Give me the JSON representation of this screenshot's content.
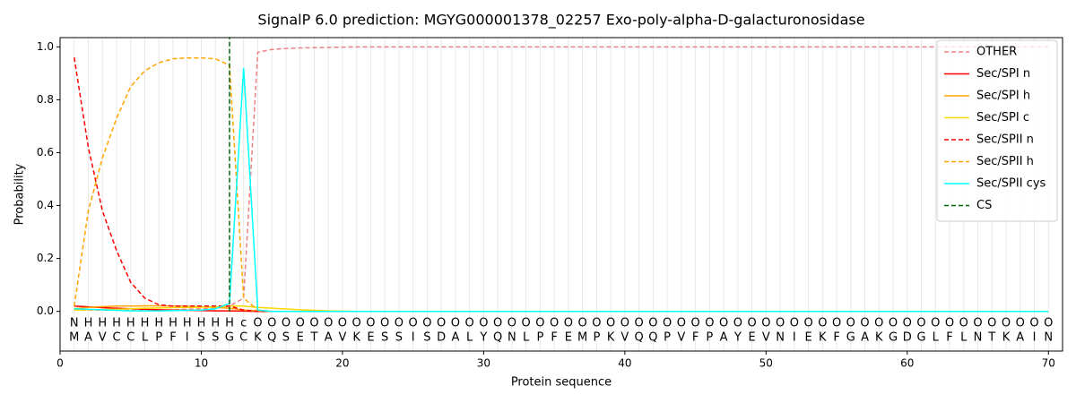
{
  "chart_data": {
    "type": "line",
    "title": "SignalP 6.0 prediction: MGYG000001378_02257 Exo-poly-alpha-D-galacturonosidase",
    "x_label": "Protein sequence",
    "y_label": "Probability",
    "x": [
      1,
      2,
      3,
      4,
      5,
      6,
      7,
      8,
      9,
      10,
      11,
      12,
      13,
      14,
      15,
      16,
      17,
      18,
      19,
      20,
      21,
      22,
      23,
      24,
      25,
      26,
      27,
      28,
      29,
      30,
      31,
      32,
      33,
      34,
      35,
      36,
      37,
      38,
      39,
      40,
      41,
      42,
      43,
      44,
      45,
      46,
      47,
      48,
      49,
      50,
      51,
      52,
      53,
      54,
      55,
      56,
      57,
      58,
      59,
      60,
      61,
      62,
      63,
      64,
      65,
      66,
      67,
      68,
      69,
      70
    ],
    "residues": [
      "M",
      "A",
      "V",
      "C",
      "C",
      "L",
      "P",
      "F",
      "I",
      "S",
      "S",
      "G",
      "C",
      "K",
      "Q",
      "S",
      "E",
      "T",
      "A",
      "V",
      "K",
      "E",
      "S",
      "S",
      "I",
      "S",
      "D",
      "A",
      "L",
      "Y",
      "Q",
      "N",
      "L",
      "P",
      "F",
      "E",
      "M",
      "P",
      "K",
      "V",
      "Q",
      "Q",
      "P",
      "V",
      "F",
      "P",
      "A",
      "Y",
      "E",
      "V",
      "N",
      "I",
      "E",
      "K",
      "F",
      "G",
      "A",
      "K",
      "G",
      "D",
      "G",
      "L",
      "F",
      "L",
      "N",
      "T",
      "K",
      "A",
      "I",
      "N"
    ],
    "labels": [
      "N",
      "H",
      "H",
      "H",
      "H",
      "H",
      "H",
      "H",
      "H",
      "H",
      "H",
      "H",
      "c",
      "O",
      "O",
      "O",
      "O",
      "O",
      "O",
      "O",
      "O",
      "O",
      "O",
      "O",
      "O",
      "O",
      "O",
      "O",
      "O",
      "O",
      "O",
      "O",
      "O",
      "O",
      "O",
      "O",
      "O",
      "O",
      "O",
      "O",
      "O",
      "O",
      "O",
      "O",
      "O",
      "O",
      "O",
      "O",
      "O",
      "O",
      "O",
      "O",
      "O",
      "O",
      "O",
      "O",
      "O",
      "O",
      "O",
      "O",
      "O",
      "O",
      "O",
      "O",
      "O",
      "O",
      "O",
      "O",
      "O",
      "O"
    ],
    "label_colors": {
      "N": "red",
      "H": "orange",
      "c": "cyan",
      "O": "gray"
    },
    "xlim": [
      0,
      71
    ],
    "ylim": [
      -0.15,
      1.035
    ],
    "xticks": [
      0,
      10,
      20,
      30,
      40,
      50,
      60,
      70
    ],
    "yticks": [
      {
        "value": 0,
        "label": "0.0"
      },
      {
        "value": 0.2,
        "label": "0.2"
      },
      {
        "value": 0.4,
        "label": "0.4"
      },
      {
        "value": 0.6,
        "label": "0.6"
      },
      {
        "value": 0.8,
        "label": "0.8"
      },
      {
        "value": 1,
        "label": "1.0"
      }
    ],
    "legend": "upper right",
    "series": [
      {
        "name": "OTHER",
        "color": "#f08080",
        "dash": true,
        "values": [
          0.005,
          0.005,
          0.005,
          0.005,
          0.005,
          0.005,
          0.005,
          0.006,
          0.008,
          0.01,
          0.012,
          0.02,
          0.05,
          0.98,
          0.99,
          0.994,
          0.996,
          0.997,
          0.998,
          0.999,
          1,
          1,
          1,
          1,
          1,
          1,
          1,
          1,
          1,
          1,
          1,
          1,
          1,
          1,
          1,
          1,
          1,
          1,
          1,
          1,
          1,
          1,
          1,
          1,
          1,
          1,
          1,
          1,
          1,
          1,
          1,
          1,
          1,
          1,
          1,
          1,
          1,
          1,
          1,
          1,
          1,
          1,
          1,
          1,
          1,
          1,
          1,
          1,
          1,
          1
        ]
      },
      {
        "name": "Sec/SPI n",
        "color": "#ff0000",
        "dash": false,
        "values": [
          0.02,
          0.017,
          0.014,
          0.012,
          0.01,
          0.008,
          0.006,
          0.005,
          0.004,
          0.003,
          0.002,
          0.002,
          0.001,
          0,
          0,
          0,
          0,
          0,
          0,
          0,
          0,
          0,
          0,
          0,
          0,
          0,
          0,
          0,
          0,
          0,
          0,
          0,
          0,
          0,
          0,
          0,
          0,
          0,
          0,
          0,
          0,
          0,
          0,
          0,
          0,
          0,
          0,
          0,
          0,
          0,
          0,
          0,
          0,
          0,
          0,
          0,
          0,
          0,
          0,
          0,
          0,
          0,
          0,
          0,
          0,
          0,
          0,
          0,
          0,
          0
        ]
      },
      {
        "name": "Sec/SPI h",
        "color": "#ffa500",
        "dash": false,
        "values": [
          0.01,
          0.015,
          0.018,
          0.02,
          0.02,
          0.021,
          0.021,
          0.02,
          0.019,
          0.017,
          0.015,
          0.012,
          0.005,
          0.002,
          0,
          0,
          0,
          0,
          0,
          0,
          0,
          0,
          0,
          0,
          0,
          0,
          0,
          0,
          0,
          0,
          0,
          0,
          0,
          0,
          0,
          0,
          0,
          0,
          0,
          0,
          0,
          0,
          0,
          0,
          0,
          0,
          0,
          0,
          0,
          0,
          0,
          0,
          0,
          0,
          0,
          0,
          0,
          0,
          0,
          0,
          0,
          0,
          0,
          0,
          0,
          0,
          0,
          0,
          0,
          0
        ]
      },
      {
        "name": "Sec/SPI c",
        "color": "#ffd700",
        "dash": false,
        "values": [
          0.005,
          0.006,
          0.007,
          0.008,
          0.01,
          0.012,
          0.013,
          0.014,
          0.015,
          0.016,
          0.017,
          0.02,
          0.02,
          0.015,
          0.012,
          0.009,
          0.006,
          0.004,
          0.002,
          0.001,
          0,
          0,
          0,
          0,
          0,
          0,
          0,
          0,
          0,
          0,
          0,
          0,
          0,
          0,
          0,
          0,
          0,
          0,
          0,
          0,
          0,
          0,
          0,
          0,
          0,
          0,
          0,
          0,
          0,
          0,
          0,
          0,
          0,
          0,
          0,
          0,
          0,
          0,
          0,
          0,
          0,
          0,
          0,
          0,
          0,
          0,
          0,
          0,
          0,
          0
        ]
      },
      {
        "name": "Sec/SPII n",
        "color": "#ff0000",
        "dash": true,
        "values": [
          0.96,
          0.62,
          0.38,
          0.23,
          0.11,
          0.05,
          0.025,
          0.02,
          0.02,
          0.02,
          0.02,
          0.02,
          0.005,
          0,
          0,
          0,
          0,
          0,
          0,
          0,
          0,
          0,
          0,
          0,
          0,
          0,
          0,
          0,
          0,
          0,
          0,
          0,
          0,
          0,
          0,
          0,
          0,
          0,
          0,
          0,
          0,
          0,
          0,
          0,
          0,
          0,
          0,
          0,
          0,
          0,
          0,
          0,
          0,
          0,
          0,
          0,
          0,
          0,
          0,
          0,
          0,
          0,
          0,
          0,
          0,
          0,
          0,
          0,
          0,
          0
        ]
      },
      {
        "name": "Sec/SPII h",
        "color": "#ffa500",
        "dash": true,
        "values": [
          0.02,
          0.38,
          0.58,
          0.73,
          0.85,
          0.91,
          0.94,
          0.955,
          0.958,
          0.958,
          0.955,
          0.93,
          0.05,
          0.005,
          0,
          0,
          0,
          0,
          0,
          0,
          0,
          0,
          0,
          0,
          0,
          0,
          0,
          0,
          0,
          0,
          0,
          0,
          0,
          0,
          0,
          0,
          0,
          0,
          0,
          0,
          0,
          0,
          0,
          0,
          0,
          0,
          0,
          0,
          0,
          0,
          0,
          0,
          0,
          0,
          0,
          0,
          0,
          0,
          0,
          0,
          0,
          0,
          0,
          0,
          0,
          0,
          0,
          0,
          0,
          0
        ]
      },
      {
        "name": "Sec/SPII cys",
        "color": "#00ffff",
        "dash": false,
        "values": [
          0.01,
          0.008,
          0.006,
          0.004,
          0.002,
          0.002,
          0.002,
          0.003,
          0.004,
          0.005,
          0.01,
          0.03,
          0.92,
          0.005,
          0,
          0,
          0,
          0,
          0,
          0,
          0,
          0,
          0,
          0,
          0,
          0,
          0,
          0,
          0,
          0,
          0,
          0,
          0,
          0,
          0,
          0,
          0,
          0,
          0,
          0,
          0,
          0,
          0,
          0,
          0,
          0,
          0,
          0,
          0,
          0,
          0,
          0,
          0,
          0,
          0,
          0,
          0,
          0,
          0,
          0,
          0,
          0,
          0,
          0,
          0,
          0,
          0,
          0,
          0,
          0
        ]
      }
    ],
    "cs": {
      "name": "CS",
      "color": "#006400",
      "x": 12
    }
  }
}
